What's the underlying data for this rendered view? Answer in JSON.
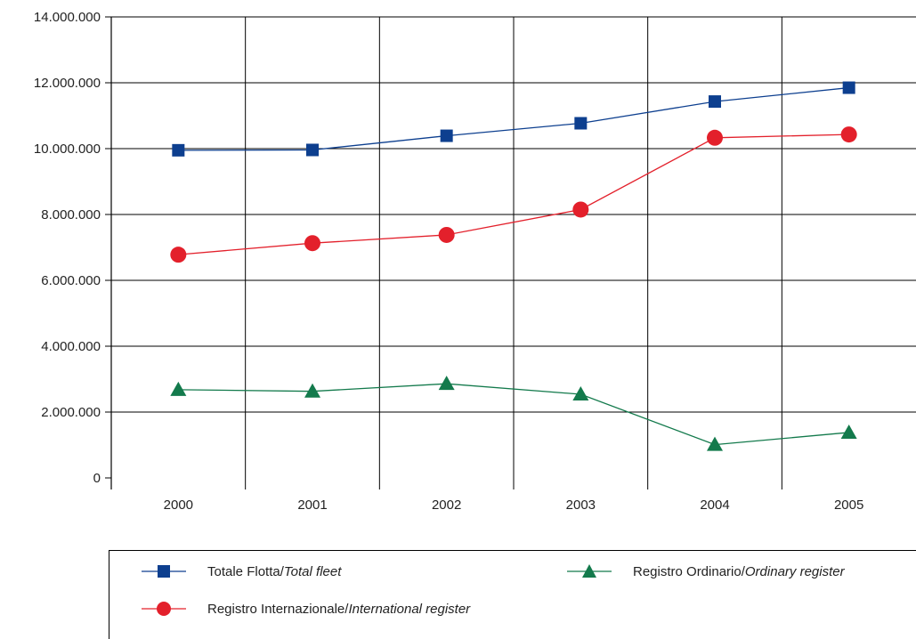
{
  "chart_data": {
    "type": "line",
    "categories": [
      "2000",
      "2001",
      "2002",
      "2003",
      "2004",
      "2005"
    ],
    "ylim": [
      0,
      14000000
    ],
    "y_ticks": [
      0,
      2000000,
      4000000,
      6000000,
      8000000,
      10000000,
      12000000,
      14000000
    ],
    "y_tick_labels": [
      "0",
      "2.000.000",
      "4.000.000",
      "6.000.000",
      "8.000.000",
      "10.000.000",
      "12.000.000",
      "14.000.000"
    ],
    "grid": true,
    "legend_position": "bottom",
    "series": [
      {
        "name": "Totale Flotta/Total fleet",
        "name_main": "Totale Flotta/",
        "name_italic": "Total fleet",
        "color": "#0d3f8f",
        "marker": "square",
        "values": [
          9950000,
          9960000,
          10390000,
          10770000,
          11430000,
          11850000
        ]
      },
      {
        "name": "Registro Internazionale/International register",
        "name_main": "Registro Internazionale/",
        "name_italic": "International register",
        "color": "#e3202b",
        "marker": "circle",
        "values": [
          6780000,
          7130000,
          7380000,
          8150000,
          10330000,
          10430000
        ]
      },
      {
        "name": "Registro Ordinario/Ordinary register",
        "name_main": "Registro Ordinario/",
        "name_italic": "Ordinary register",
        "color": "#137a4c",
        "marker": "triangle",
        "values": [
          2680000,
          2630000,
          2860000,
          2540000,
          1010000,
          1380000
        ]
      }
    ]
  }
}
